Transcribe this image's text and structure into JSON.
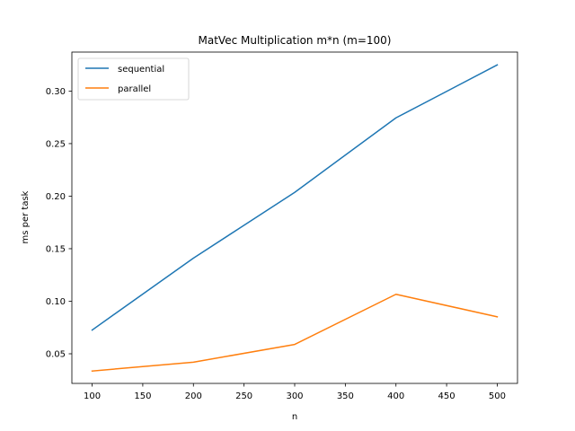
{
  "chart_data": {
    "type": "line",
    "title": "MatVec Multiplication m*n (m=100)",
    "xlabel": "n",
    "ylabel": "ms per task",
    "x": [
      100,
      200,
      300,
      400,
      500
    ],
    "xlim": [
      80,
      520
    ],
    "ylim": [
      0.0218,
      0.3371
    ],
    "xticks": [
      "100",
      "150",
      "200",
      "250",
      "300",
      "350",
      "400",
      "450",
      "500"
    ],
    "yticks": [
      "0.05",
      "0.10",
      "0.15",
      "0.20",
      "0.25",
      "0.30"
    ],
    "grid": false,
    "legend_position": "upper left",
    "series": [
      {
        "name": "sequential",
        "color": "#1f77b4",
        "values": [
          0.0726,
          0.141,
          0.2036,
          0.2745,
          0.3249
        ]
      },
      {
        "name": "parallel",
        "color": "#ff7f0e",
        "values": [
          0.0336,
          0.042,
          0.0589,
          0.1066,
          0.0852
        ]
      }
    ]
  }
}
